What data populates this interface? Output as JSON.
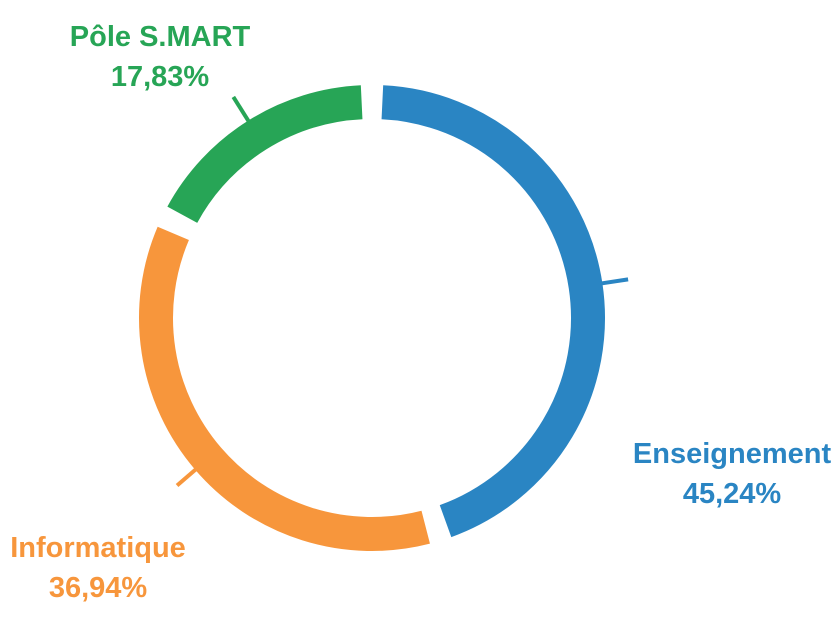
{
  "chart_data": {
    "type": "pie",
    "variant": "donut",
    "title": "",
    "slices": [
      {
        "label": "Enseignement",
        "value": 45.24,
        "value_label": "45,24%",
        "color": "#2A85C3"
      },
      {
        "label": "Informatique",
        "value": 36.94,
        "value_label": "36,94%",
        "color": "#F7963C"
      },
      {
        "label": "Pôle S.MART",
        "value": 17.83,
        "value_label": "17,83%",
        "color": "#27A556"
      }
    ],
    "legend": "none",
    "labels_position": "outside-with-leader-lines",
    "start_angle_deg": 0,
    "direction": "clockwise"
  }
}
